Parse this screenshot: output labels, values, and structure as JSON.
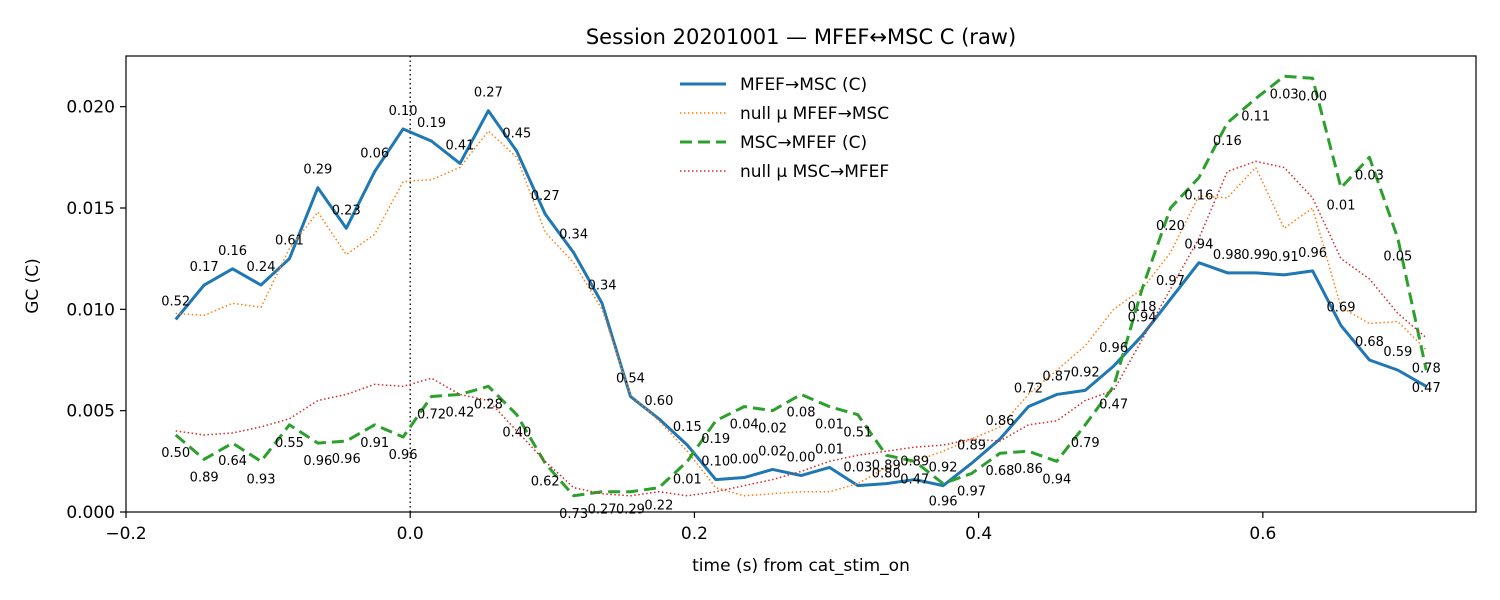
{
  "chart_data": {
    "type": "line",
    "title": "Session 20201001 — MFEF↔MSC C (raw)",
    "xlabel": "time (s) from cat_stim_on",
    "ylabel": "GC (C)",
    "xlim": [
      -0.2,
      0.75
    ],
    "ylim": [
      0.0,
      0.0225
    ],
    "xticks": [
      -0.2,
      0.0,
      0.2,
      0.4,
      0.6
    ],
    "xtick_labels": [
      "−0.2",
      "0.0",
      "0.2",
      "0.4",
      "0.6"
    ],
    "yticks": [
      0.0,
      0.005,
      0.01,
      0.015,
      0.02
    ],
    "ytick_labels": [
      "0.000",
      "0.005",
      "0.010",
      "0.015",
      "0.020"
    ],
    "vline_x": 0.0,
    "legend_position": "upper-center",
    "x": [
      -0.165,
      -0.145,
      -0.125,
      -0.105,
      -0.085,
      -0.065,
      -0.045,
      -0.025,
      -0.005,
      0.015,
      0.035,
      0.055,
      0.075,
      0.095,
      0.115,
      0.135,
      0.155,
      0.175,
      0.195,
      0.215,
      0.235,
      0.255,
      0.275,
      0.295,
      0.315,
      0.335,
      0.355,
      0.375,
      0.395,
      0.415,
      0.435,
      0.455,
      0.475,
      0.495,
      0.515,
      0.535,
      0.555,
      0.575,
      0.595,
      0.615,
      0.635,
      0.655,
      0.675,
      0.695,
      0.715
    ],
    "series": [
      {
        "name": "MFEF→MSC (C)",
        "color": "#1f77b4",
        "style": "solid",
        "values": [
          0.0095,
          0.0112,
          0.012,
          0.0112,
          0.0125,
          0.016,
          0.014,
          0.0168,
          0.0189,
          0.0183,
          0.0172,
          0.0198,
          0.0178,
          0.0147,
          0.0128,
          0.0103,
          0.0057,
          0.0046,
          0.0033,
          0.0016,
          0.0017,
          0.0021,
          0.0018,
          0.0022,
          0.0013,
          0.0014,
          0.0016,
          0.0013,
          0.0024,
          0.0036,
          0.0052,
          0.0058,
          0.006,
          0.0072,
          0.0087,
          0.0105,
          0.0123,
          0.0118,
          0.0118,
          0.0117,
          0.0119,
          0.0092,
          0.0075,
          0.007,
          0.0062
        ],
        "annotations": [
          "0.52",
          "0.17",
          "0.16",
          "0.24",
          "0.61",
          "0.29",
          "0.23",
          "0.06",
          "0.10",
          "0.19",
          "0.41",
          "0.27",
          "0.45",
          "0.27",
          "0.34",
          "0.34",
          "0.54",
          "0.60",
          "0.15",
          "0.10",
          "0.00",
          "0.02",
          "0.00",
          "0.01",
          "0.03",
          "0.89",
          "0.89",
          "0.92",
          "0.89",
          "0.86",
          "0.72",
          "0.87",
          "0.92",
          "0.96",
          "0.94",
          "0.97",
          "0.94",
          "0.98",
          "0.99",
          "0.91",
          "0.96",
          "0.69",
          "0.68",
          "0.59",
          "0.78"
        ]
      },
      {
        "name": "null μ MFEF→MSC",
        "color": "#ff7f0e",
        "style": "dotted",
        "values": [
          0.0098,
          0.0097,
          0.0103,
          0.0101,
          0.013,
          0.0148,
          0.0127,
          0.0137,
          0.0163,
          0.0164,
          0.017,
          0.0188,
          0.0175,
          0.0138,
          0.0123,
          0.01,
          0.0058,
          0.0045,
          0.003,
          0.0012,
          0.0008,
          0.0009,
          0.001,
          0.001,
          0.0014,
          0.0022,
          0.0025,
          0.003,
          0.0036,
          0.0042,
          0.0058,
          0.007,
          0.0082,
          0.01,
          0.011,
          0.0128,
          0.0156,
          0.0155,
          0.017,
          0.014,
          0.015,
          0.0101,
          0.0093,
          0.0094,
          0.008
        ]
      },
      {
        "name": "MSC→MFEF (C)",
        "color": "#2ca02c",
        "style": "dashed",
        "values": [
          0.0038,
          0.0026,
          0.0034,
          0.0025,
          0.0043,
          0.0034,
          0.0035,
          0.0043,
          0.0037,
          0.0057,
          0.0058,
          0.0062,
          0.0048,
          0.0024,
          0.0008,
          0.001,
          0.001,
          0.0012,
          0.0025,
          0.0045,
          0.0052,
          0.005,
          0.0058,
          0.0052,
          0.0048,
          0.0028,
          0.0025,
          0.0014,
          0.0019,
          0.0029,
          0.003,
          0.0025,
          0.0043,
          0.0062,
          0.011,
          0.015,
          0.0165,
          0.0192,
          0.0204,
          0.0215,
          0.0214,
          0.016,
          0.0175,
          0.0135,
          0.007
        ],
        "annotations": [
          "0.50",
          "0.89",
          "0.64",
          "0.93",
          "0.55",
          "0.96",
          "0.96",
          "0.91",
          "0.96",
          "0.72",
          "0.42",
          "0.28",
          "0.40",
          "0.62",
          "0.73",
          "0.27",
          "0.29",
          "0.22",
          "0.01",
          "0.19",
          "0.04",
          "0.02",
          "0.08",
          "0.01",
          "0.51",
          "0.80",
          "0.47",
          "0.96",
          "0.97",
          "0.68",
          "0.86",
          "0.94",
          "0.79",
          "0.47",
          "0.18",
          "0.20",
          "0.16",
          "0.16",
          "0.11",
          "0.03",
          "0.00",
          "0.01",
          "0.03",
          "0.05",
          "0.47"
        ]
      },
      {
        "name": "null μ MSC→MFEF",
        "color": "#d62728",
        "style": "dotted",
        "values": [
          0.004,
          0.0038,
          0.0039,
          0.0042,
          0.0046,
          0.0055,
          0.0058,
          0.0063,
          0.0062,
          0.0066,
          0.0058,
          0.0055,
          0.004,
          0.0025,
          0.0012,
          0.0009,
          0.0008,
          0.001,
          0.0008,
          0.001,
          0.0013,
          0.0016,
          0.002,
          0.0025,
          0.0028,
          0.003,
          0.0032,
          0.0033,
          0.0036,
          0.0035,
          0.0043,
          0.0045,
          0.0055,
          0.006,
          0.0085,
          0.011,
          0.0135,
          0.0168,
          0.0173,
          0.017,
          0.0155,
          0.0125,
          0.0115,
          0.0098,
          0.0086
        ]
      }
    ]
  }
}
